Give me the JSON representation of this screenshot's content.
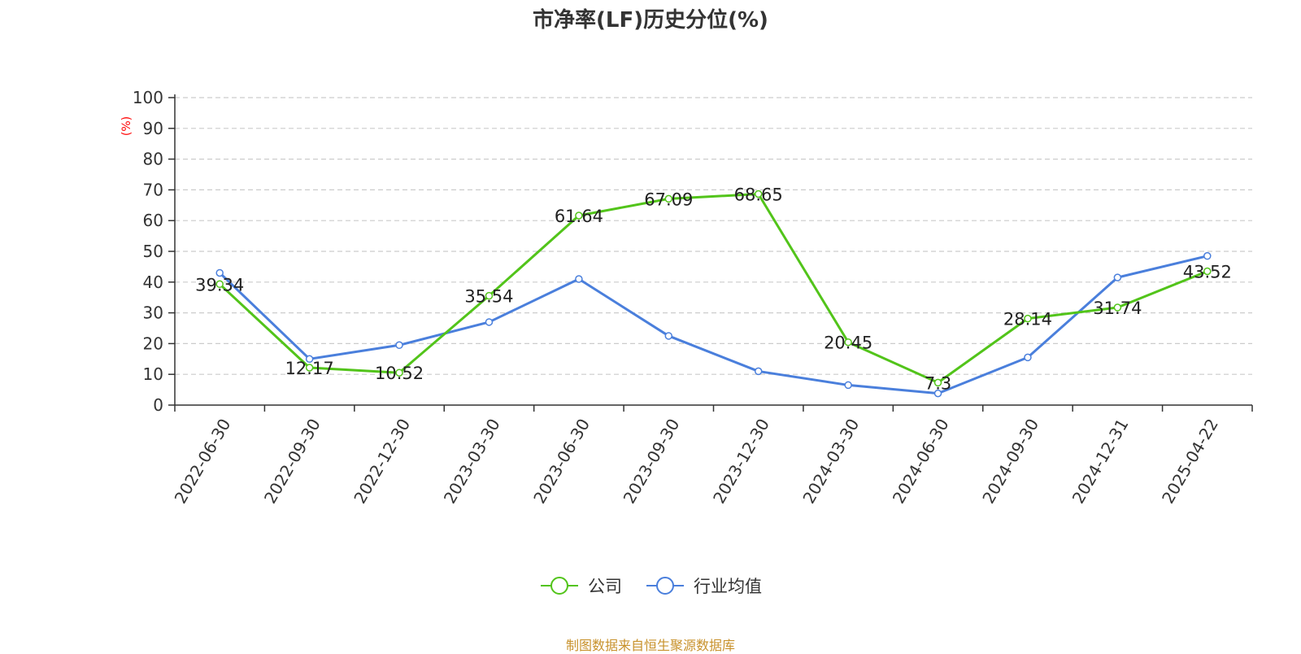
{
  "chart_data": {
    "type": "line",
    "title": "市净率(LF)历史分位(%)",
    "ylabel": "(%)",
    "xlabel": "",
    "ylim": [
      0,
      100
    ],
    "yticks": [
      0,
      10,
      20,
      30,
      40,
      50,
      60,
      70,
      80,
      90,
      100
    ],
    "grid": true,
    "legend_position": "bottom",
    "categories": [
      "2022-06-30",
      "2022-09-30",
      "2022-12-30",
      "2023-03-30",
      "2023-06-30",
      "2023-09-30",
      "2023-12-30",
      "2024-03-30",
      "2024-06-30",
      "2024-09-30",
      "2024-12-31",
      "2025-04-22"
    ],
    "series": [
      {
        "name": "公司",
        "color": "#52c41a",
        "values": [
          39.34,
          12.17,
          10.52,
          35.54,
          61.64,
          67.09,
          68.65,
          20.45,
          7.3,
          28.14,
          31.74,
          43.52
        ],
        "labels": [
          "39.34",
          "12.17",
          "10.52",
          "35.54",
          "61.64",
          "67.09",
          "68.65",
          "20.45",
          "7.3",
          "28.14",
          "31.74",
          "43.52"
        ]
      },
      {
        "name": "行业均值",
        "color": "#4a7fdc",
        "values": [
          43,
          15,
          19.5,
          27,
          41,
          22.5,
          11,
          6.5,
          3.8,
          15.5,
          41.5,
          48.5
        ]
      }
    ],
    "source": "制图数据来自恒生聚源数据库",
    "source_color": "#c8922c"
  }
}
